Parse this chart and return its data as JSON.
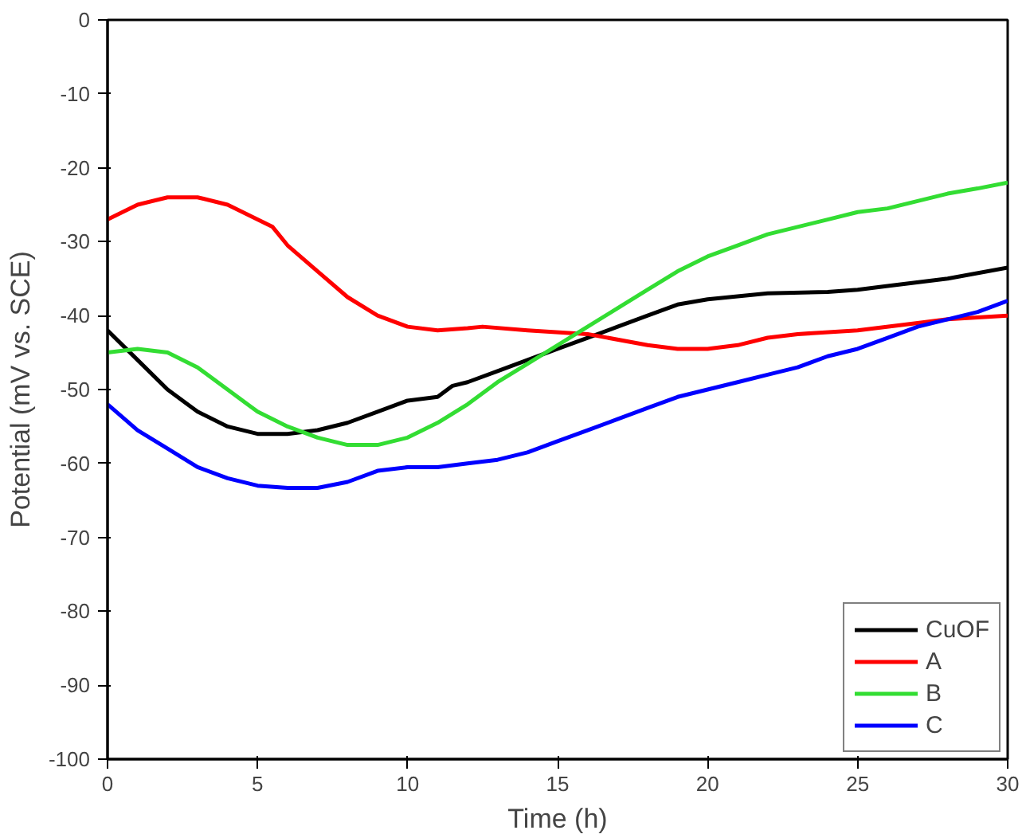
{
  "chart_data": {
    "type": "line",
    "xlabel": "Time (h)",
    "ylabel": "Potential (mV vs. SCE)",
    "xlim": [
      0,
      30
    ],
    "ylim": [
      -100,
      0
    ],
    "xticks": [
      0,
      5,
      10,
      15,
      20,
      25,
      30
    ],
    "yticks": [
      -100,
      -90,
      -80,
      -70,
      -60,
      -50,
      -40,
      -30,
      -20,
      -10,
      0
    ],
    "grid": false,
    "legend": "bottom right",
    "line_style": "solid",
    "marker": "none",
    "series": [
      {
        "name": "CuOF",
        "color": "#000000",
        "x": [
          0,
          1,
          2,
          3,
          4,
          5,
          6,
          7,
          8,
          9,
          10,
          11,
          11.5,
          12,
          13,
          14,
          15,
          16,
          17,
          18,
          19,
          20,
          22,
          24,
          25,
          26,
          28,
          30
        ],
        "values": [
          -42,
          -46,
          -50,
          -53,
          -55,
          -56,
          -56,
          -55.5,
          -54.5,
          -53,
          -51.5,
          -51,
          -49.5,
          -49,
          -47.5,
          -46,
          -44.5,
          -43,
          -41.5,
          -40,
          -38.5,
          -37.8,
          -37,
          -36.8,
          -36.5,
          -36,
          -35,
          -33.5
        ]
      },
      {
        "name": "A",
        "color": "#ff0000",
        "x": [
          0,
          1,
          2,
          3,
          4,
          5,
          5.5,
          6,
          7,
          8,
          9,
          10,
          11,
          12,
          12.5,
          14,
          16,
          18,
          19,
          20,
          21,
          22,
          23,
          25,
          27,
          28,
          30
        ],
        "values": [
          -27,
          -25,
          -24,
          -24,
          -25,
          -27,
          -28,
          -30.5,
          -34,
          -37.5,
          -40,
          -41.5,
          -42,
          -41.7,
          -41.5,
          -42,
          -42.5,
          -44,
          -44.5,
          -44.5,
          -44,
          -43,
          -42.5,
          -42,
          -41,
          -40.5,
          -40
        ]
      },
      {
        "name": "B",
        "color": "#33dd33",
        "x": [
          0,
          1,
          2,
          3,
          4,
          5,
          6,
          7,
          8,
          9,
          10,
          11,
          12,
          13,
          14,
          15,
          16,
          17,
          18,
          19,
          20,
          21,
          22,
          23,
          24,
          25,
          26,
          27,
          28,
          29,
          30
        ],
        "values": [
          -45,
          -44.5,
          -45,
          -47,
          -50,
          -53,
          -55,
          -56.5,
          -57.5,
          -57.5,
          -56.5,
          -54.5,
          -52,
          -49,
          -46.5,
          -44,
          -41.5,
          -39,
          -36.5,
          -34,
          -32,
          -30.5,
          -29,
          -28,
          -27,
          -26,
          -25.5,
          -24.5,
          -23.5,
          -22.8,
          -22
        ]
      },
      {
        "name": "C",
        "color": "#0000ff",
        "x": [
          0,
          1,
          2,
          3,
          4,
          5,
          6,
          7,
          8,
          9,
          10,
          11,
          12,
          13,
          14,
          15,
          16,
          17,
          18,
          19,
          20,
          21,
          22,
          23,
          24,
          25,
          26,
          27,
          28,
          29,
          30
        ],
        "values": [
          -52,
          -55.5,
          -58,
          -60.5,
          -62,
          -63,
          -63.3,
          -63.3,
          -62.5,
          -61,
          -60.5,
          -60.5,
          -60,
          -59.5,
          -58.5,
          -57,
          -55.5,
          -54,
          -52.5,
          -51,
          -50,
          -49,
          -48,
          -47,
          -45.5,
          -44.5,
          -43,
          -41.5,
          -40.5,
          -39.5,
          -38
        ]
      }
    ]
  }
}
